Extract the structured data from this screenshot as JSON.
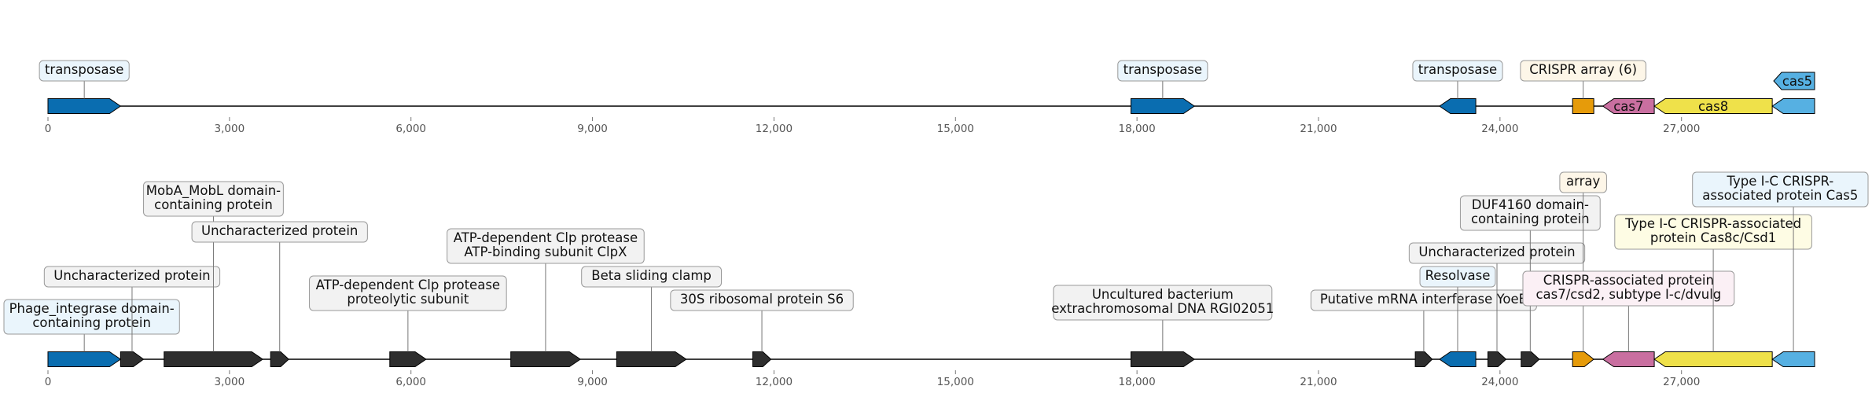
{
  "axis": {
    "ticks": [
      "0",
      "3,000",
      "6,000",
      "9,000",
      "12,000",
      "15,000",
      "18,000",
      "21,000",
      "24,000",
      "27,000"
    ],
    "tick_values": [
      0,
      3000,
      6000,
      9000,
      12000,
      15000,
      18000,
      21000,
      24000,
      27000
    ],
    "range": [
      0,
      29200
    ]
  },
  "colors": {
    "transposase": "#0a6db0",
    "array": "#e69b0a",
    "cas7": "#c96fa0",
    "cas8": "#efe14a",
    "cas5": "#56b0e2",
    "other": "#2e2e2e",
    "box_blue": "#eaf5fc",
    "box_yellow": "#fefce4",
    "box_orange": "#fdf6e8",
    "box_pink": "#fbf0f5",
    "box_gray": "#f2f2f2"
  },
  "tracks": [
    {
      "features": [
        {
          "start": 0,
          "end": 1200,
          "strand": 1,
          "color": "transposase",
          "label": [
            "transposase"
          ],
          "box": "box_blue",
          "level": 0
        },
        {
          "start": 17900,
          "end": 18950,
          "strand": 1,
          "color": "transposase",
          "label": [
            "transposase"
          ],
          "box": "box_blue",
          "level": 0
        },
        {
          "start": 23000,
          "end": 23600,
          "strand": -1,
          "color": "transposase",
          "label": [
            "transposase"
          ],
          "box": "box_blue",
          "level": 0
        },
        {
          "start": 25200,
          "end": 25550,
          "strand": 0,
          "color": "array",
          "label": [
            "CRISPR array (6)"
          ],
          "box": "box_orange",
          "level": 0
        },
        {
          "start": 25700,
          "end": 26550,
          "strand": -1,
          "color": "cas7",
          "label": [
            "cas7"
          ],
          "box": "",
          "level": -1
        },
        {
          "start": 26550,
          "end": 28500,
          "strand": -1,
          "color": "cas8",
          "label": [
            "cas8"
          ],
          "box": "",
          "level": -1
        },
        {
          "start": 28500,
          "end": 29200,
          "strand": -1,
          "color": "cas5",
          "label": [
            "cas5"
          ],
          "box": "",
          "level": -2
        }
      ]
    },
    {
      "features": [
        {
          "start": 0,
          "end": 1200,
          "strand": 1,
          "color": "transposase",
          "label": [
            "Phage_integrase domain-",
            "containing protein"
          ],
          "box": "box_blue",
          "level": 0
        },
        {
          "start": 1200,
          "end": 1580,
          "strand": 1,
          "color": "other",
          "label": [
            "Uncharacterized protein"
          ],
          "box": "box_gray",
          "level": 2
        },
        {
          "start": 1920,
          "end": 3550,
          "strand": 1,
          "color": "other",
          "label": [
            "MobA_MobL domain-",
            "containing protein"
          ],
          "box": "box_gray",
          "level": 5
        },
        {
          "start": 3680,
          "end": 3980,
          "strand": 1,
          "color": "other",
          "label": [
            "Uncharacterized protein"
          ],
          "box": "box_gray",
          "level": 3.9
        },
        {
          "start": 5650,
          "end": 6250,
          "strand": 1,
          "color": "other",
          "label": [
            "ATP-dependent Clp protease",
            "proteolytic subunit"
          ],
          "box": "box_gray",
          "level": 1
        },
        {
          "start": 7650,
          "end": 8800,
          "strand": 1,
          "color": "other",
          "label": [
            "ATP-dependent Clp protease",
            "ATP-binding subunit ClpX"
          ],
          "box": "box_gray",
          "level": 3
        },
        {
          "start": 9400,
          "end": 10550,
          "strand": 1,
          "color": "other",
          "label": [
            "Beta sliding clamp"
          ],
          "box": "box_gray",
          "level": 2
        },
        {
          "start": 11650,
          "end": 11950,
          "strand": 1,
          "color": "other",
          "label": [
            "30S ribosomal protein S6"
          ],
          "box": "box_gray",
          "level": 1
        },
        {
          "start": 17900,
          "end": 18950,
          "strand": 1,
          "color": "other",
          "label": [
            "Uncultured bacterium",
            "extrachromosomal DNA RGI02051"
          ],
          "box": "box_gray",
          "level": 0.6
        },
        {
          "start": 22600,
          "end": 22880,
          "strand": 1,
          "color": "other",
          "label": [
            "Putative mRNA interferase YoeB"
          ],
          "box": "box_gray",
          "level": 1
        },
        {
          "start": 23000,
          "end": 23600,
          "strand": -1,
          "color": "transposase",
          "label": [
            "Resolvase"
          ],
          "box": "box_blue",
          "level": 2
        },
        {
          "start": 23800,
          "end": 24100,
          "strand": 1,
          "color": "other",
          "label": [
            "Uncharacterized protein"
          ],
          "box": "box_gray",
          "level": 3
        },
        {
          "start": 24350,
          "end": 24650,
          "strand": 1,
          "color": "other",
          "label": [
            "DUF4160 domain-",
            "containing protein"
          ],
          "box": "box_gray",
          "level": 4.4
        },
        {
          "start": 25200,
          "end": 25550,
          "strand": 1,
          "color": "array",
          "label": [
            "array"
          ],
          "box": "box_orange",
          "level": 6
        },
        {
          "start": 25700,
          "end": 26550,
          "strand": -1,
          "color": "cas7",
          "label": [
            "CRISPR-associated protein",
            "cas7/csd2, subtype I-c/dvulg"
          ],
          "box": "box_pink",
          "level": 1.2
        },
        {
          "start": 26550,
          "end": 28500,
          "strand": -1,
          "color": "cas8",
          "label": [
            "Type I-C CRISPR-associated",
            "protein Cas8c/Csd1"
          ],
          "box": "box_yellow",
          "level": 3.6
        },
        {
          "start": 28500,
          "end": 29200,
          "strand": -1,
          "color": "cas5",
          "label": [
            "Type I-C CRISPR-",
            "associated protein Cas5"
          ],
          "box": "box_blue",
          "level": 5.4
        }
      ]
    }
  ]
}
